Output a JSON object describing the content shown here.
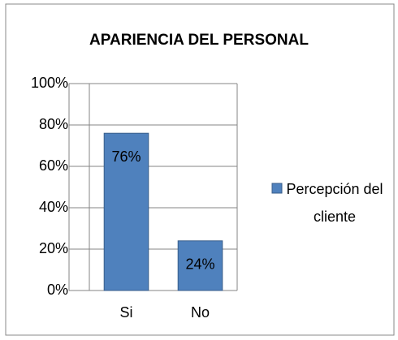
{
  "chart_data": {
    "type": "bar",
    "title": "APARIENCIA DEL PERSONAL",
    "categories": [
      "Si",
      "No"
    ],
    "series": [
      {
        "name": "Percepción del cliente",
        "color": "#4f81bd",
        "values": [
          76,
          24
        ],
        "value_labels": [
          "76%",
          "24%"
        ]
      }
    ],
    "ylim": [
      0,
      100
    ],
    "yticks": [
      {
        "value": 0,
        "label": "0%"
      },
      {
        "value": 20,
        "label": "20%"
      },
      {
        "value": 40,
        "label": "40%"
      },
      {
        "value": 60,
        "label": "60%"
      },
      {
        "value": 80,
        "label": "80%"
      },
      {
        "value": 100,
        "label": "100%"
      }
    ],
    "grid": true,
    "legend": "right"
  }
}
